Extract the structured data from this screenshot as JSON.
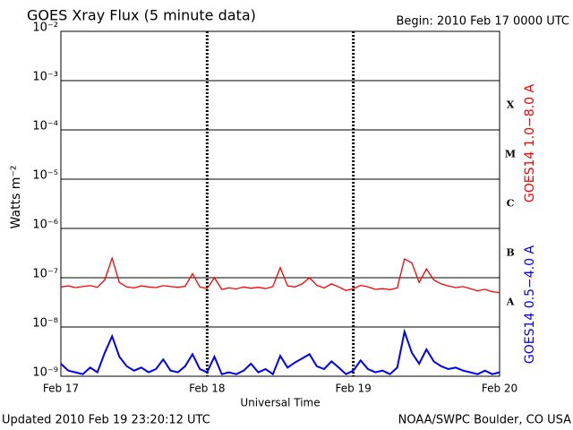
{
  "chart_data": {
    "type": "line",
    "title": "GOES Xray Flux (5 minute data)",
    "subtitle": "Begin:  2010 Feb 17 0000 UTC",
    "xlabel": "Universal Time",
    "ylabel": "Watts m⁻²",
    "footer_left": "Updated 2010 Feb 19 23:20:12 UTC",
    "footer_right": "NOAA/SWPC Boulder, CO USA",
    "log_y": true,
    "grid": true,
    "ylim": [
      1e-09,
      0.01
    ],
    "yticks": [
      {
        "value": 1e-09,
        "label": "10⁻⁹"
      },
      {
        "value": 1e-08,
        "label": "10⁻⁸"
      },
      {
        "value": 1e-07,
        "label": "10⁻⁷"
      },
      {
        "value": 1e-06,
        "label": "10⁻⁶"
      },
      {
        "value": 1e-05,
        "label": "10⁻⁵"
      },
      {
        "value": 0.0001,
        "label": "10⁻⁴"
      },
      {
        "value": 0.001,
        "label": "10⁻³"
      },
      {
        "value": 0.01,
        "label": "10⁻²"
      }
    ],
    "xlim": [
      0,
      3
    ],
    "xticks": [
      {
        "value": 0,
        "label": "Feb 17"
      },
      {
        "value": 1,
        "label": "Feb 18"
      },
      {
        "value": 2,
        "label": "Feb 19"
      },
      {
        "value": 3,
        "label": "Feb 20"
      }
    ],
    "flare_classes": [
      "X",
      "M",
      "C",
      "B",
      "A"
    ],
    "x": [
      0,
      0.05,
      0.1,
      0.15,
      0.2,
      0.25,
      0.3,
      0.35,
      0.4,
      0.45,
      0.5,
      0.55,
      0.6,
      0.65,
      0.7,
      0.75,
      0.8,
      0.85,
      0.9,
      0.95,
      1,
      1.05,
      1.1,
      1.15,
      1.2,
      1.25,
      1.3,
      1.35,
      1.4,
      1.45,
      1.5,
      1.55,
      1.6,
      1.65,
      1.7,
      1.75,
      1.8,
      1.85,
      1.9,
      1.95,
      2,
      2.05,
      2.1,
      2.15,
      2.2,
      2.25,
      2.3,
      2.35,
      2.4,
      2.45,
      2.5,
      2.55,
      2.6,
      2.65,
      2.7,
      2.75,
      2.8,
      2.85,
      2.9,
      2.95,
      3
    ],
    "series": [
      {
        "name": "GOES14 1.0−8.0 A",
        "color": "#ff0000",
        "values": [
          6.5e-08,
          6.8e-08,
          6.3e-08,
          6.6e-08,
          6.9e-08,
          6.4e-08,
          9e-08,
          2.5e-07,
          8e-08,
          6.5e-08,
          6.2e-08,
          6.8e-08,
          6.5e-08,
          6.3e-08,
          6.9e-08,
          6.6e-08,
          6.4e-08,
          6.7e-08,
          1.2e-07,
          6.5e-08,
          6e-08,
          1e-07,
          5.8e-08,
          6.2e-08,
          5.9e-08,
          6.5e-08,
          6.1e-08,
          6.4e-08,
          6e-08,
          6.6e-08,
          1.6e-07,
          6.8e-08,
          6.5e-08,
          7.5e-08,
          1e-07,
          7e-08,
          6.2e-08,
          7.5e-08,
          6.5e-08,
          5.5e-08,
          6e-08,
          7e-08,
          6.5e-08,
          5.8e-08,
          6e-08,
          5.7e-08,
          6.2e-08,
          2.4e-07,
          2e-07,
          8e-08,
          1.5e-07,
          9e-08,
          7.5e-08,
          6.8e-08,
          6.3e-08,
          6.6e-08,
          6e-08,
          5.4e-08,
          5.8e-08,
          5.2e-08,
          5e-08
        ]
      },
      {
        "name": "GOES14 0.5−4.0 A",
        "color": "#0000ff",
        "values": [
          1.8e-09,
          1.3e-09,
          1.2e-09,
          1.1e-09,
          1.5e-09,
          1.2e-09,
          3e-09,
          6.5e-09,
          2.5e-09,
          1.6e-09,
          1.3e-09,
          1.5e-09,
          1.2e-09,
          1.4e-09,
          2.2e-09,
          1.3e-09,
          1.2e-09,
          1.6e-09,
          2.8e-09,
          1.4e-09,
          1.2e-09,
          2.5e-09,
          1.1e-09,
          1.2e-09,
          1.1e-09,
          1.3e-09,
          1.8e-09,
          1.2e-09,
          1.4e-09,
          1.1e-09,
          2.6e-09,
          1.5e-09,
          1.9e-09,
          2.3e-09,
          2.8e-09,
          1.6e-09,
          1.4e-09,
          2e-09,
          1.5e-09,
          1.1e-09,
          1.3e-09,
          2.1e-09,
          1.4e-09,
          1.2e-09,
          1.3e-09,
          1.1e-09,
          1.5e-09,
          8e-09,
          3e-09,
          1.8e-09,
          3.5e-09,
          2e-09,
          1.6e-09,
          1.4e-09,
          1.5e-09,
          1.3e-09,
          1.2e-09,
          1.1e-09,
          1.3e-09,
          1.1e-09,
          1.2e-09
        ]
      }
    ]
  }
}
